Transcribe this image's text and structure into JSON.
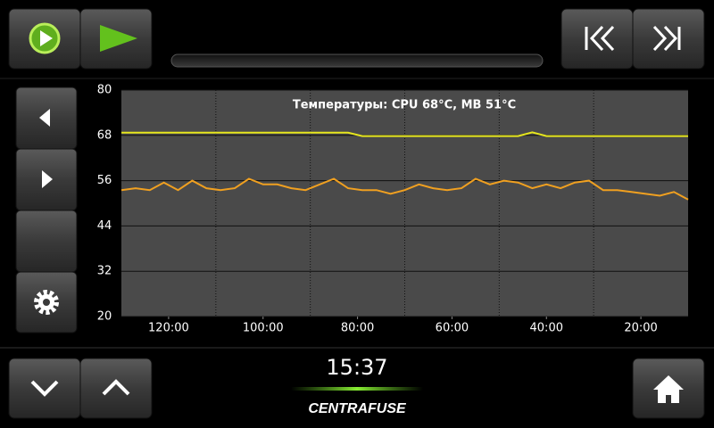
{
  "ui": {
    "clock": "15:37",
    "logo": "CENTRAFUSE"
  },
  "chart_data": {
    "type": "line",
    "title": "Температуры: CPU 68°C, MB 51°C",
    "x": [
      130,
      127,
      124,
      121,
      118,
      115,
      112,
      109,
      106,
      103,
      100,
      97,
      94,
      91,
      88,
      85,
      82,
      79,
      76,
      73,
      70,
      67,
      64,
      61,
      58,
      55,
      52,
      49,
      46,
      43,
      40,
      37,
      34,
      31,
      28,
      25,
      22,
      19,
      16,
      13,
      10
    ],
    "series": [
      {
        "name": "CPU",
        "color": "#e6e61e",
        "values": [
          68.7,
          68.7,
          68.7,
          68.7,
          68.7,
          68.7,
          68.7,
          68.7,
          68.7,
          68.7,
          68.7,
          68.7,
          68.7,
          68.7,
          68.7,
          68.7,
          68.7,
          67.8,
          67.8,
          67.8,
          67.8,
          67.8,
          67.8,
          67.8,
          67.8,
          67.8,
          67.8,
          67.8,
          67.8,
          68.8,
          67.8,
          67.8,
          67.8,
          67.8,
          67.8,
          67.8,
          67.8,
          67.8,
          67.8,
          67.8,
          67.8
        ]
      },
      {
        "name": "MB",
        "color": "#f0a020",
        "values": [
          53.5,
          54,
          53.5,
          55.5,
          53.5,
          56,
          54,
          53.5,
          54,
          56.5,
          55,
          55,
          54,
          53.5,
          55,
          56.5,
          54,
          53.5,
          53.5,
          52.5,
          53.5,
          55,
          54,
          53.5,
          54,
          56.5,
          55,
          56,
          55.5,
          54,
          55,
          54,
          55.5,
          56,
          53.5,
          53.5,
          53,
          52.5,
          52,
          53,
          51
        ]
      }
    ],
    "xlim": [
      130,
      10
    ],
    "xticks": [
      {
        "value": 120,
        "label": "120:00"
      },
      {
        "value": 100,
        "label": "100:00"
      },
      {
        "value": 80,
        "label": "80:00"
      },
      {
        "value": 60,
        "label": "60:00"
      },
      {
        "value": 40,
        "label": "40:00"
      },
      {
        "value": 20,
        "label": "20:00"
      }
    ],
    "x_minor_ticks": [
      110,
      90,
      70,
      50,
      30
    ],
    "ylim": [
      20,
      80
    ],
    "yticks": [
      20,
      32,
      44,
      56,
      68,
      80
    ],
    "grid": true
  }
}
